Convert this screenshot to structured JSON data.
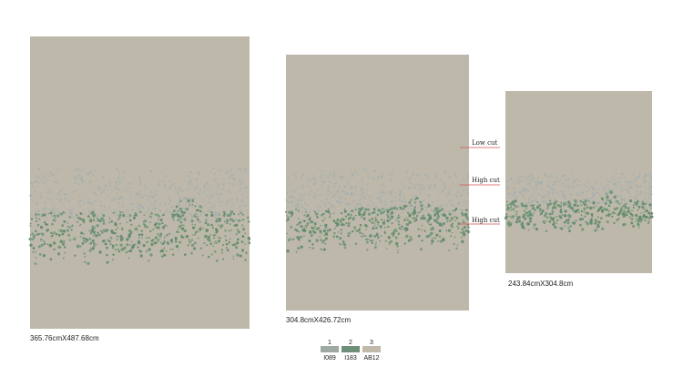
{
  "rugs": [
    {
      "size": "365.76cmX487.68cm"
    },
    {
      "size": "304.8cmX426.72cm"
    },
    {
      "size": "243.84cmX304.8cm"
    }
  ],
  "cut_labels": [
    "Low cut",
    "High cut",
    "High cut"
  ],
  "swatches": [
    {
      "number": "1",
      "code": "I089"
    },
    {
      "number": "2",
      "code": "I183"
    },
    {
      "number": "3",
      "code": "AB12"
    }
  ]
}
